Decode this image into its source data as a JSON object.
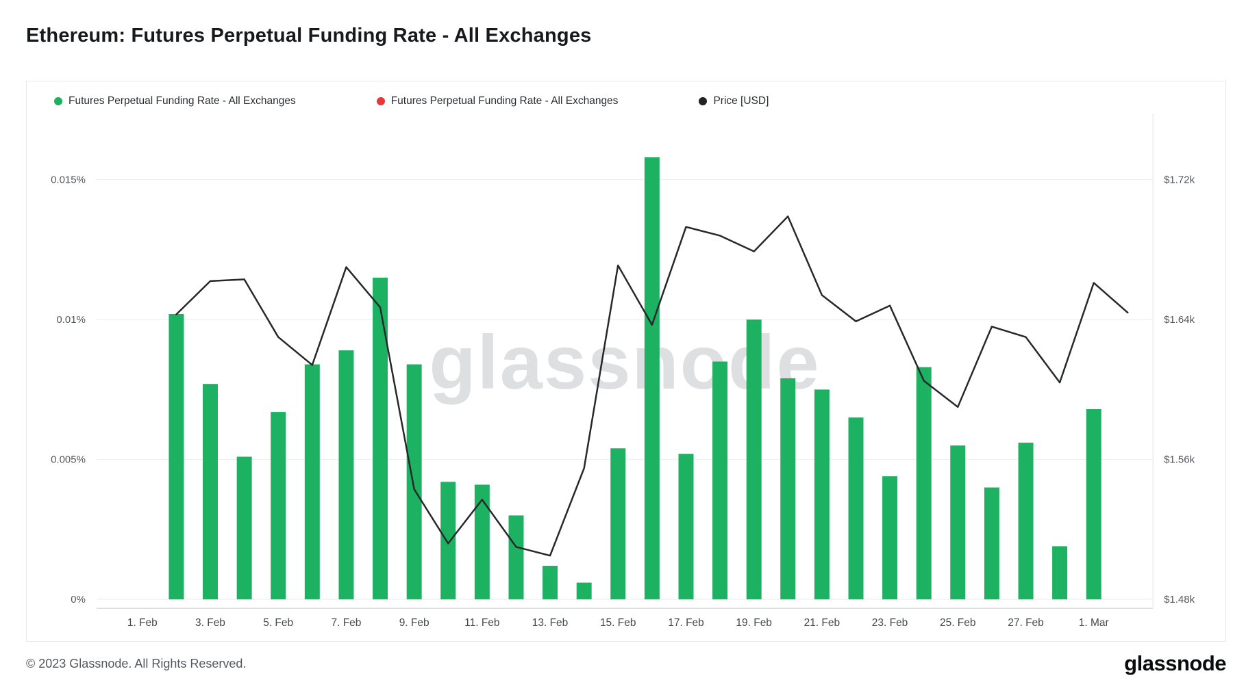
{
  "page": {
    "title": "Ethereum: Futures Perpetual Funding Rate - All Exchanges",
    "footer_copyright": "© 2023 Glassnode. All Rights Reserved.",
    "brand_wordmark": "glassnode",
    "watermark": "glassnode"
  },
  "legend": [
    {
      "label": "Futures Perpetual Funding Rate - All Exchanges",
      "color": "#1cb262"
    },
    {
      "label": "Futures Perpetual Funding Rate - All Exchanges",
      "color": "#e53935"
    },
    {
      "label": "Price [USD]",
      "color": "#1f2328"
    }
  ],
  "chart_data": {
    "type": "bar",
    "combo": "bar+line",
    "title": "Ethereum: Futures Perpetual Funding Rate - All Exchanges",
    "grid": true,
    "legend_position": "top-left",
    "dates": [
      "2. Feb",
      "3. Feb",
      "4. Feb",
      "5. Feb",
      "6. Feb",
      "7. Feb",
      "8. Feb",
      "9. Feb",
      "10. Feb",
      "11. Feb",
      "12. Feb",
      "13. Feb",
      "14. Feb",
      "15. Feb",
      "16. Feb",
      "17. Feb",
      "18. Feb",
      "19. Feb",
      "20. Feb",
      "21. Feb",
      "22. Feb",
      "23. Feb",
      "24. Feb",
      "25. Feb",
      "26. Feb",
      "27. Feb",
      "28. Feb",
      "1. Mar",
      "2. Mar"
    ],
    "series": [
      {
        "name": "Futures Perpetual Funding Rate - All Exchanges",
        "type": "bar",
        "axis": "left",
        "unit": "%",
        "color": "#1cb262",
        "start_day": 1,
        "values": [
          0.0102,
          0.0077,
          0.0051,
          0.0067,
          0.0084,
          0.0089,
          0.0115,
          0.0084,
          0.0042,
          0.0041,
          0.003,
          0.0012,
          0.0006,
          0.0054,
          0.0158,
          0.0052,
          0.0085,
          0.01,
          0.0079,
          0.0075,
          0.0065,
          0.0044,
          0.0083,
          0.0055,
          0.004,
          0.0056,
          0.0019,
          0.0068
        ]
      },
      {
        "name": "Price [USD]",
        "type": "line",
        "axis": "right",
        "unit": "kUSD",
        "color": "#26282b",
        "start_day": 1,
        "values": [
          1.643,
          1.662,
          1.663,
          1.63,
          1.614,
          1.67,
          1.647,
          1.543,
          1.512,
          1.537,
          1.51,
          1.505,
          1.555,
          1.671,
          1.637,
          1.693,
          1.688,
          1.679,
          1.699,
          1.654,
          1.639,
          1.648,
          1.605,
          1.59,
          1.636,
          1.63,
          1.604,
          1.661,
          1.644
        ]
      }
    ],
    "left_axis": {
      "ticks": [
        {
          "label": "0%",
          "value": 0
        },
        {
          "label": "0.005%",
          "value": 0.005
        },
        {
          "label": "0.01%",
          "value": 0.01
        },
        {
          "label": "0.015%",
          "value": 0.015
        }
      ]
    },
    "right_axis": {
      "ticks": [
        {
          "label": "$1.48k",
          "value": 1.48
        },
        {
          "label": "$1.56k",
          "value": 1.56
        },
        {
          "label": "$1.64k",
          "value": 1.64
        },
        {
          "label": "$1.72k",
          "value": 1.72
        }
      ]
    },
    "x_ticks": [
      {
        "label": "1. Feb",
        "day": 0
      },
      {
        "label": "3. Feb",
        "day": 2
      },
      {
        "label": "5. Feb",
        "day": 4
      },
      {
        "label": "7. Feb",
        "day": 6
      },
      {
        "label": "9. Feb",
        "day": 8
      },
      {
        "label": "11. Feb",
        "day": 10
      },
      {
        "label": "13. Feb",
        "day": 12
      },
      {
        "label": "15. Feb",
        "day": 14
      },
      {
        "label": "17. Feb",
        "day": 16
      },
      {
        "label": "19. Feb",
        "day": 18
      },
      {
        "label": "21. Feb",
        "day": 20
      },
      {
        "label": "23. Feb",
        "day": 22
      },
      {
        "label": "25. Feb",
        "day": 24
      },
      {
        "label": "27. Feb",
        "day": 26
      },
      {
        "label": "1. Mar",
        "day": 28
      }
    ]
  }
}
